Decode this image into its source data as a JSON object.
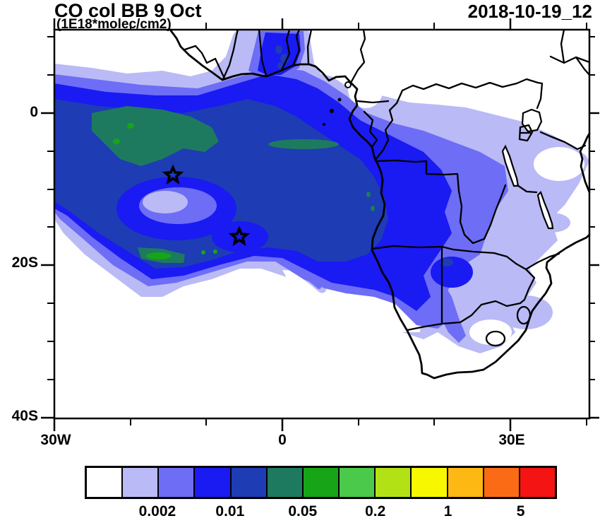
{
  "header": {
    "title": "CO col BB 9 Oct",
    "subtitle": "(1E18*molec/cm2)",
    "datetime": "2018-10-19_12"
  },
  "axes": {
    "y_ticks": [
      {
        "label": "0"
      },
      {
        "label": "20S"
      },
      {
        "label": "40S"
      }
    ],
    "x_ticks": [
      {
        "label": "30W"
      },
      {
        "label": "0"
      },
      {
        "label": "30E"
      }
    ]
  },
  "colorbar": {
    "colors": [
      "#ffffff",
      "#babaf6",
      "#6d6df6",
      "#1a1af2",
      "#1e3cb4",
      "#1e7a5f",
      "#17a517",
      "#4bc94b",
      "#b2e216",
      "#f7f700",
      "#fdb813",
      "#fb6b15",
      "#f41414"
    ],
    "tick_labels": [
      {
        "text": "0.002",
        "boundary": 2
      },
      {
        "text": "0.01",
        "boundary": 4
      },
      {
        "text": "0.05",
        "boundary": 6
      },
      {
        "text": "0.2",
        "boundary": 8
      },
      {
        "text": "1",
        "boundary": 10
      },
      {
        "text": "5",
        "boundary": 12
      }
    ]
  },
  "chart_data": {
    "type": "heatmap",
    "title": "CO col BB 9 Oct",
    "subtitle_units": "1E18*molec/cm2",
    "timestamp_label": "2018-10-19_12",
    "projection": "cylindrical lat-lon map, Africa and South Atlantic",
    "lon_range": [
      -30,
      40
    ],
    "lat_range": [
      -40,
      11
    ],
    "x_tick_labels": [
      "30W",
      "0",
      "30E"
    ],
    "y_tick_labels": [
      "0",
      "20S",
      "40S"
    ],
    "contour_levels": [
      0.001,
      0.002,
      0.005,
      0.01,
      0.02,
      0.05,
      0.1,
      0.2,
      0.5,
      1,
      2,
      5
    ],
    "labeled_levels": [
      0.002,
      0.01,
      0.05,
      0.2,
      1,
      5
    ],
    "palette_hex": [
      "#ffffff",
      "#babaf6",
      "#6d6df6",
      "#1a1af2",
      "#1e3cb4",
      "#1e7a5f",
      "#17a517",
      "#4bc94b",
      "#b2e216",
      "#f7f700",
      "#fdb813",
      "#fb6b15",
      "#f41414"
    ],
    "field_description": "Biomass-burning CO column plume: core values ~0.02-0.1 (dark blue to dark green) over the tropical South Atlantic between ~0 and 20S and over Angola/Congo; 0.005-0.02 (blue/periwinkle) ring extending over DRC, Zambia, Namibia and Botswana; 0.001-0.005 (lavender) fringe reaching East Africa and South Africa; clean air (white) over Nigeria, Kenya, and south of ~30S; low-value hole near 17W,10S inside the plume; highest patches (~0.1-0.2, green) near 15W,3S and 20W,18S",
    "markers": [
      {
        "shape": "star",
        "lon": -14.4,
        "lat": -8.0
      },
      {
        "shape": "star",
        "lon": -5.7,
        "lat": -16.3
      }
    ],
    "legend_position": "horizontal colorbar below map"
  }
}
